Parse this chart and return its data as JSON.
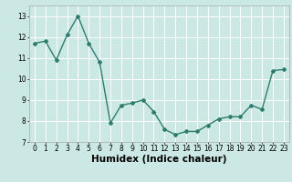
{
  "x": [
    0,
    1,
    2,
    3,
    4,
    5,
    6,
    7,
    8,
    9,
    10,
    11,
    12,
    13,
    14,
    15,
    16,
    17,
    18,
    19,
    20,
    21,
    22,
    23
  ],
  "y": [
    11.7,
    11.8,
    10.9,
    12.1,
    13.0,
    11.7,
    10.8,
    7.9,
    8.75,
    8.85,
    9.0,
    8.45,
    7.6,
    7.35,
    7.5,
    7.5,
    7.8,
    8.1,
    8.2,
    8.2,
    8.75,
    8.55,
    10.4,
    10.45
  ],
  "line_color": "#2d7d6e",
  "marker": "D",
  "marker_size": 2.0,
  "line_width": 1.0,
  "xlabel": "Humidex (Indice chaleur)",
  "xlim": [
    -0.5,
    23.5
  ],
  "ylim": [
    7.0,
    13.5
  ],
  "yticks": [
    7,
    8,
    9,
    10,
    11,
    12,
    13
  ],
  "xticks": [
    0,
    1,
    2,
    3,
    4,
    5,
    6,
    7,
    8,
    9,
    10,
    11,
    12,
    13,
    14,
    15,
    16,
    17,
    18,
    19,
    20,
    21,
    22,
    23
  ],
  "bg_color": "#cce8e4",
  "grid_color": "#ffffff",
  "tick_fontsize": 5.5,
  "xlabel_fontsize": 7.5
}
